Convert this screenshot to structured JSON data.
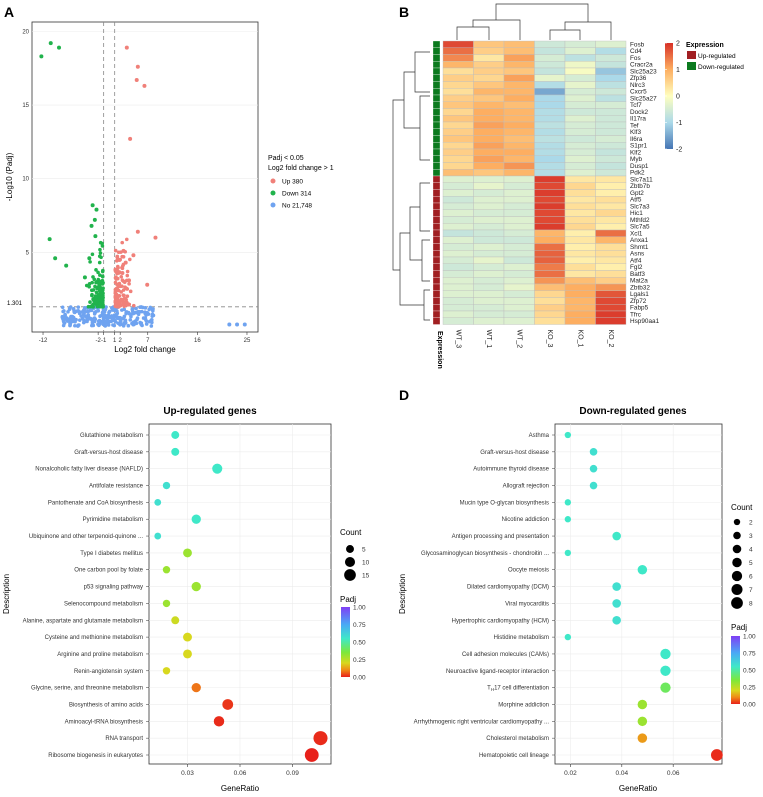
{
  "panels": {
    "A": "A",
    "B": "B",
    "C": "C",
    "D": "D"
  },
  "chart_data": [
    {
      "id": "volcano",
      "type": "scatter",
      "title": "",
      "xlabel": "Log2 fold change",
      "ylabel": "-Log10 (Padj)",
      "xticks": [
        -12,
        -2,
        -1,
        1,
        2,
        7,
        16,
        25
      ],
      "yticks": [
        5,
        10,
        15,
        20
      ],
      "threshold_label": "1.301",
      "xlim": [
        -14,
        27
      ],
      "ylim": [
        0,
        20.5
      ],
      "legend_title_1": "Padj < 0.05",
      "legend_title_2": "Log2 fold change > 1",
      "legend": [
        {
          "label": "Up 380",
          "color": "#f08079"
        },
        {
          "label": "Down 314",
          "color": "#21b34c"
        },
        {
          "label": "No 21,748",
          "color": "#6fa3f0"
        }
      ],
      "points_up": [
        [
          3.2,
          18.9
        ],
        [
          5.2,
          17.6
        ],
        [
          5.0,
          16.7
        ],
        [
          6.4,
          16.3
        ],
        [
          3.8,
          12.7
        ],
        [
          8.4,
          6.0
        ],
        [
          5.2,
          6.4
        ],
        [
          2.6,
          5.1
        ],
        [
          4.4,
          4.8
        ],
        [
          3.0,
          4.3
        ],
        [
          6.9,
          2.8
        ],
        [
          3.6,
          3.1
        ],
        [
          2.4,
          3.6
        ]
      ],
      "points_down": [
        [
          -10.6,
          19.2
        ],
        [
          -12.3,
          18.3
        ],
        [
          -9.1,
          18.9
        ],
        [
          -3.0,
          8.2
        ],
        [
          -2.3,
          7.9
        ],
        [
          -2.6,
          7.2
        ],
        [
          -3.2,
          6.8
        ],
        [
          -10.8,
          5.9
        ],
        [
          -9.8,
          4.6
        ],
        [
          -7.8,
          4.1
        ],
        [
          -3.6,
          4.6
        ],
        [
          -2.5,
          6.1
        ],
        [
          -4.4,
          3.3
        ]
      ],
      "points_ns_far": [
        [
          21.8,
          0.1
        ],
        [
          23.2,
          0.1
        ],
        [
          24.6,
          0.1
        ]
      ]
    },
    {
      "id": "heatmap",
      "type": "heatmap",
      "columns": [
        "WT_3",
        "WT_1",
        "WT_2",
        "KO_3",
        "KO_1",
        "KO_2"
      ],
      "rows": [
        "Fosb",
        "Cd4",
        "Fos",
        "Cracr2a",
        "Slc25a23",
        "Zfp36",
        "Nlrc3",
        "Cxcr5",
        "Slc25a27",
        "Tcf7",
        "Dock2",
        "Il17ra",
        "Tef",
        "Klf3",
        "Il6ra",
        "S1pr1",
        "Klf2",
        "Myb",
        "Dusp1",
        "Pdk2",
        "Slc7a11",
        "Zbtb7b",
        "Gpt2",
        "Atf5",
        "Slc7a3",
        "Hic1",
        "Mthfd2",
        "Slc7a5",
        "Xcl1",
        "Anxa1",
        "Shmt1",
        "Asns",
        "Atf4",
        "Fgl2",
        "Batf3",
        "Mat2a",
        "Zbtb32",
        "Lgals1",
        "Zfp72",
        "Fabp5",
        "Tfrc",
        "Hsp90aa1"
      ],
      "row_group": [
        0,
        0,
        0,
        0,
        0,
        0,
        0,
        0,
        0,
        0,
        0,
        0,
        0,
        0,
        0,
        0,
        0,
        0,
        0,
        0,
        1,
        1,
        1,
        1,
        1,
        1,
        1,
        1,
        1,
        1,
        1,
        1,
        1,
        1,
        1,
        1,
        1,
        1,
        1,
        1,
        1,
        1
      ],
      "values": [
        [
          1.8,
          0.7,
          0.8,
          -0.6,
          -0.5,
          -0.4
        ],
        [
          1.5,
          0.6,
          0.8,
          -0.7,
          -0.4,
          -0.9
        ],
        [
          1.3,
          0.3,
          1.1,
          -0.5,
          -0.8,
          -0.6
        ],
        [
          0.9,
          0.6,
          0.9,
          -0.6,
          -0.2,
          -0.7
        ],
        [
          0.4,
          0.6,
          0.7,
          -0.7,
          -0.1,
          -1.2
        ],
        [
          0.6,
          0.5,
          1.1,
          -0.3,
          -0.5,
          -1.0
        ],
        [
          0.5,
          0.7,
          0.9,
          -0.9,
          -0.3,
          -0.8
        ],
        [
          0.4,
          0.9,
          0.9,
          -1.5,
          -0.5,
          -0.6
        ],
        [
          0.6,
          0.7,
          1.0,
          -1.0,
          -0.4,
          -0.8
        ],
        [
          0.7,
          0.9,
          0.8,
          -1.0,
          -0.5,
          -0.5
        ],
        [
          0.5,
          1.0,
          0.9,
          -0.9,
          -0.6,
          -0.6
        ],
        [
          0.7,
          1.0,
          0.9,
          -0.9,
          -0.4,
          -0.6
        ],
        [
          0.5,
          1.1,
          1.0,
          -0.8,
          -0.5,
          -0.6
        ],
        [
          0.6,
          1.0,
          0.9,
          -0.9,
          -0.5,
          -0.6
        ],
        [
          0.7,
          1.0,
          0.8,
          -0.8,
          -0.6,
          -0.5
        ],
        [
          0.5,
          1.1,
          0.9,
          -0.9,
          -0.5,
          -0.6
        ],
        [
          0.6,
          1.0,
          1.0,
          -0.9,
          -0.5,
          -0.7
        ],
        [
          0.5,
          1.1,
          0.9,
          -1.0,
          -0.4,
          -0.6
        ],
        [
          0.5,
          1.0,
          1.2,
          -0.9,
          -0.5,
          -0.7
        ],
        [
          0.8,
          0.7,
          0.9,
          -0.9,
          -0.4,
          -0.6
        ],
        [
          -0.4,
          -0.4,
          -0.4,
          1.9,
          0.3,
          0.3
        ],
        [
          -0.5,
          -0.3,
          -0.5,
          1.8,
          0.5,
          0.2
        ],
        [
          -0.4,
          -0.5,
          -0.4,
          1.9,
          0.4,
          0.2
        ],
        [
          -0.6,
          -0.4,
          -0.4,
          1.8,
          0.3,
          0.4
        ],
        [
          -0.5,
          -0.4,
          -0.5,
          1.9,
          0.4,
          0.3
        ],
        [
          -0.4,
          -0.5,
          -0.5,
          1.8,
          0.3,
          0.5
        ],
        [
          -0.5,
          -0.4,
          -0.4,
          1.8,
          0.4,
          0.3
        ],
        [
          -0.4,
          -0.5,
          -0.4,
          1.9,
          0.5,
          0.2
        ],
        [
          -0.7,
          -0.6,
          -0.5,
          0.9,
          0.2,
          1.5
        ],
        [
          -0.4,
          -0.6,
          -0.6,
          1.0,
          0.3,
          0.9
        ],
        [
          -0.5,
          -0.4,
          -0.5,
          1.5,
          0.2,
          0.4
        ],
        [
          -0.4,
          -0.5,
          -0.5,
          1.6,
          0.3,
          0.4
        ],
        [
          -0.5,
          -0.3,
          -0.6,
          1.6,
          0.2,
          0.3
        ],
        [
          -0.6,
          -0.5,
          -0.4,
          1.4,
          0.4,
          0.2
        ],
        [
          -0.5,
          -0.4,
          -0.5,
          1.5,
          0.3,
          0.4
        ],
        [
          -0.4,
          -0.5,
          -0.4,
          1.2,
          0.8,
          0.6
        ],
        [
          -0.4,
          -0.5,
          -0.3,
          0.8,
          1.0,
          1.2
        ],
        [
          -0.4,
          -0.4,
          -0.5,
          0.5,
          1.0,
          1.7
        ],
        [
          -0.5,
          -0.4,
          -0.4,
          0.4,
          0.9,
          1.8
        ],
        [
          -0.5,
          -0.5,
          -0.4,
          0.6,
          0.9,
          1.8
        ],
        [
          -0.4,
          -0.5,
          -0.5,
          0.5,
          1.0,
          1.9
        ],
        [
          -0.5,
          -0.4,
          -0.4,
          0.4,
          1.0,
          1.9
        ]
      ],
      "colorbar_ticks": [
        2,
        1,
        0,
        -1,
        -2
      ],
      "legend_title": "Expression",
      "legend": [
        {
          "label": "Up-regulated",
          "color": "#a11f22"
        },
        {
          "label": "Down-regulated",
          "color": "#0b7a1e"
        }
      ],
      "annotation_label": "Expression"
    },
    {
      "id": "dot_up",
      "type": "scatter",
      "title": "Up-regulated genes",
      "xlabel": "GeneRatio",
      "ylabel": "Description",
      "xlim": [
        0.008,
        0.112
      ],
      "xticks": [
        0.03,
        0.06,
        0.09
      ],
      "xtick_labels": [
        "0.03",
        "0.06",
        "0.09"
      ],
      "size_legend_title": "Count",
      "size_legend": [
        5,
        10,
        15
      ],
      "color_legend_title": "Padj",
      "color_ticks": [
        "1.00",
        "0.75",
        "0.50",
        "0.25",
        "0.00"
      ],
      "terms": [
        {
          "label": "Glutathione metabolism",
          "ratio": 0.023,
          "count": 5,
          "padj": 0.55
        },
        {
          "label": "Graft-versus-host disease",
          "ratio": 0.023,
          "count": 5,
          "padj": 0.55
        },
        {
          "label": "Nonalcoholic fatty liver disease (NAFLD)",
          "ratio": 0.047,
          "count": 10,
          "padj": 0.55
        },
        {
          "label": "Antifolate resistance",
          "ratio": 0.018,
          "count": 4,
          "padj": 0.58
        },
        {
          "label": "Pantothenate and CoA biosynthesis",
          "ratio": 0.013,
          "count": 3,
          "padj": 0.58
        },
        {
          "label": "Pyrimidine metabolism",
          "ratio": 0.035,
          "count": 8,
          "padj": 0.55
        },
        {
          "label": "Ubiquinone and other terpenoid-quinone ...",
          "ratio": 0.013,
          "count": 3,
          "padj": 0.58
        },
        {
          "label": "Type I diabetes mellitus",
          "ratio": 0.03,
          "count": 7,
          "padj": 0.3
        },
        {
          "label": "One carbon pool by folate",
          "ratio": 0.018,
          "count": 4,
          "padj": 0.3
        },
        {
          "label": "p53 signaling pathway",
          "ratio": 0.035,
          "count": 8,
          "padj": 0.3
        },
        {
          "label": "Selenocompound metabolism",
          "ratio": 0.018,
          "count": 4,
          "padj": 0.3
        },
        {
          "label": "Alanine, aspartate and glutamate metabolism",
          "ratio": 0.023,
          "count": 5,
          "padj": 0.22
        },
        {
          "label": "Cysteine and methionine metabolism",
          "ratio": 0.03,
          "count": 7,
          "padj": 0.2
        },
        {
          "label": "Arginine and proline metabolism",
          "ratio": 0.03,
          "count": 7,
          "padj": 0.2
        },
        {
          "label": "Renin-angiotensin system",
          "ratio": 0.018,
          "count": 4,
          "padj": 0.2
        },
        {
          "label": "Glycine, serine, and threonine metabolism",
          "ratio": 0.035,
          "count": 8,
          "padj": 0.08
        },
        {
          "label": "Biosynthesis of amino acids",
          "ratio": 0.053,
          "count": 12,
          "padj": 0.02
        },
        {
          "label": "Aminoacyl-tRNA biosynthesis",
          "ratio": 0.048,
          "count": 11,
          "padj": 0.01
        },
        {
          "label": "RNA transport",
          "ratio": 0.106,
          "count": 24,
          "padj": 0.01
        },
        {
          "label": "Ribosome biogenesis in eukaryotes",
          "ratio": 0.101,
          "count": 23,
          "padj": 0.0
        }
      ]
    },
    {
      "id": "dot_down",
      "type": "scatter",
      "title": "Down-regulated genes",
      "xlabel": "GeneRatio",
      "ylabel": "Description",
      "xlim": [
        0.014,
        0.079
      ],
      "xticks": [
        0.02,
        0.04,
        0.06
      ],
      "xtick_labels": [
        "0.02",
        "0.04",
        "0.06"
      ],
      "size_legend_title": "Count",
      "size_legend": [
        2,
        3,
        4,
        5,
        6,
        7,
        8
      ],
      "color_legend_title": "Padj",
      "color_ticks": [
        "1.00",
        "0.75",
        "0.50",
        "0.25",
        "0.00"
      ],
      "terms": [
        {
          "label": "Asthma",
          "ratio": 0.019,
          "count": 2,
          "padj": 0.55
        },
        {
          "label": "Graft-versus-host disease",
          "ratio": 0.029,
          "count": 3,
          "padj": 0.58
        },
        {
          "label": "Autoimmune thyroid disease",
          "ratio": 0.029,
          "count": 3,
          "padj": 0.58
        },
        {
          "label": "Allograft rejection",
          "ratio": 0.029,
          "count": 3,
          "padj": 0.58
        },
        {
          "label": "Mucin type O-glycan biosynthesis",
          "ratio": 0.019,
          "count": 2,
          "padj": 0.55
        },
        {
          "label": "Nicotine addiction",
          "ratio": 0.019,
          "count": 2,
          "padj": 0.55
        },
        {
          "label": "Antigen processing and presentation",
          "ratio": 0.038,
          "count": 4,
          "padj": 0.55
        },
        {
          "label": "Glycosaminoglycan biosynthesis - chondroitin ...",
          "ratio": 0.019,
          "count": 2,
          "padj": 0.55
        },
        {
          "label": "Oocyte meiosis",
          "ratio": 0.048,
          "count": 5,
          "padj": 0.55
        },
        {
          "label": "Dilated cardiomyopathy (DCM)",
          "ratio": 0.038,
          "count": 4,
          "padj": 0.58
        },
        {
          "label": "Viral myocarditis",
          "ratio": 0.038,
          "count": 4,
          "padj": 0.58
        },
        {
          "label": "Hypertrophic cardiomyopathy (HCM)",
          "ratio": 0.038,
          "count": 4,
          "padj": 0.58
        },
        {
          "label": "Histidine metabolism",
          "ratio": 0.019,
          "count": 2,
          "padj": 0.55
        },
        {
          "label": "Cell adhesion molecules (CAMs)",
          "ratio": 0.057,
          "count": 6,
          "padj": 0.55
        },
        {
          "label": "Neuroactive ligand-receptor interaction",
          "ratio": 0.057,
          "count": 6,
          "padj": 0.55
        },
        {
          "label": "TH17 cell differentiation",
          "ratio": 0.057,
          "count": 6,
          "padj": 0.4
        },
        {
          "label": "Morphine addiction",
          "ratio": 0.048,
          "count": 5,
          "padj": 0.3
        },
        {
          "label": "Arrhythmogenic right ventricular cardiomyopathy ...",
          "ratio": 0.048,
          "count": 5,
          "padj": 0.3
        },
        {
          "label": "Cholesterol metabolism",
          "ratio": 0.048,
          "count": 5,
          "padj": 0.12
        },
        {
          "label": "Hematopoietic cell lineage",
          "ratio": 0.077,
          "count": 8,
          "padj": 0.01
        }
      ]
    }
  ]
}
